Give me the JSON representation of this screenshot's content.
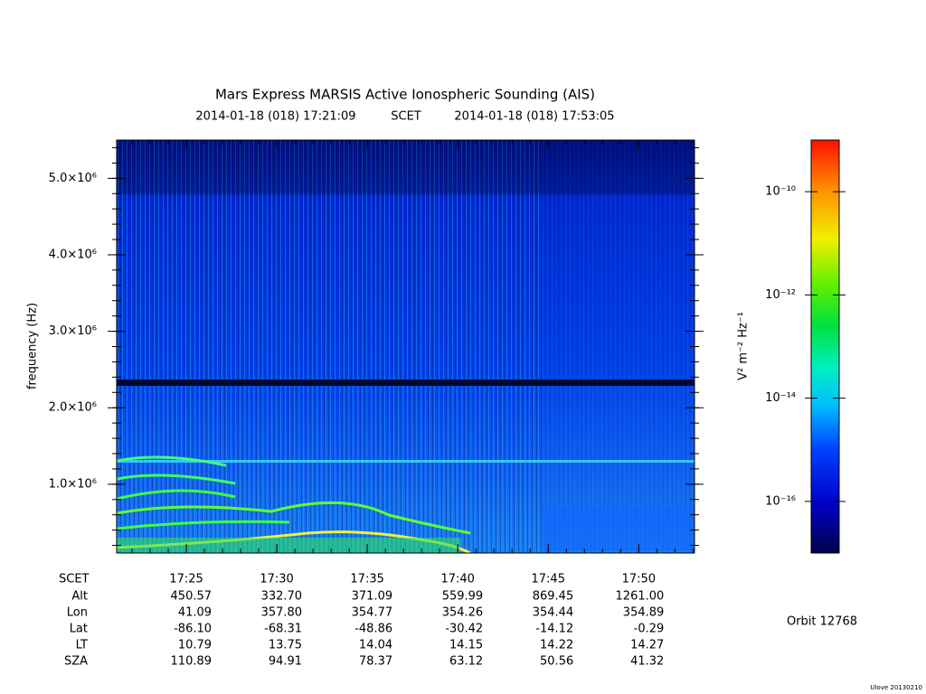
{
  "chart_data": {
    "type": "spectrogram",
    "title": "Mars Express MARSIS Active Ionospheric Sounding (AIS)",
    "x_label": "SCET",
    "xlim": [
      "2014-01-18 (018) 17:21:09",
      "2014-01-18 (018) 17:53:05"
    ],
    "xticks": [
      "17:25",
      "17:30",
      "17:35",
      "17:40",
      "17:45",
      "17:50"
    ],
    "y_label": "frequency (Hz)",
    "ylim": [
      100000,
      5500000
    ],
    "yticks": [
      {
        "value": 1000000,
        "label": "1.0×10⁶"
      },
      {
        "value": 2000000,
        "label": "2.0×10⁶"
      },
      {
        "value": 3000000,
        "label": "3.0×10⁶"
      },
      {
        "value": 4000000,
        "label": "4.0×10⁶"
      },
      {
        "value": 5000000,
        "label": "5.0×10⁶"
      }
    ],
    "ephemeris": [
      {
        "name": "Alt",
        "values": [
          "450.57",
          "332.70",
          "371.09",
          "559.99",
          "869.45",
          "1261.00"
        ]
      },
      {
        "name": "Lon",
        "values": [
          "41.09",
          "357.80",
          "354.77",
          "354.26",
          "354.44",
          "354.89"
        ]
      },
      {
        "name": "Lat",
        "values": [
          "-86.10",
          "-68.31",
          "-48.86",
          "-30.42",
          "-14.12",
          "-0.29"
        ]
      },
      {
        "name": "LT",
        "values": [
          "10.79",
          "13.75",
          "14.04",
          "14.15",
          "14.22",
          "14.27"
        ]
      },
      {
        "name": "SZA",
        "values": [
          "110.89",
          "94.91",
          "78.37",
          "63.12",
          "50.56",
          "41.32"
        ]
      }
    ],
    "colorbar": {
      "label": "V² m⁻² Hz⁻¹",
      "log_scale": true,
      "clim": [
        1e-17,
        1e-09
      ],
      "ticks": [
        {
          "value": 1e-10,
          "label": "10⁻¹⁰"
        },
        {
          "value": 1e-12,
          "label": "10⁻¹²"
        },
        {
          "value": 1e-14,
          "label": "10⁻¹⁴"
        },
        {
          "value": 1e-16,
          "label": "10⁻¹⁶"
        }
      ]
    },
    "orbit": "Orbit 12768",
    "footer": "Ulove 20130210"
  }
}
